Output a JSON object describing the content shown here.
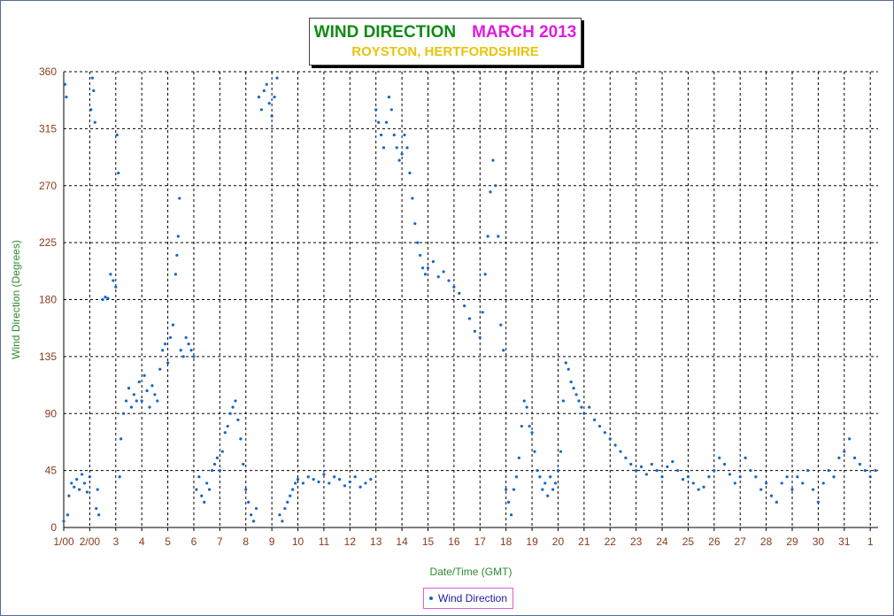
{
  "title": {
    "main": "WIND DIRECTION",
    "period": "MARCH 2013",
    "location": "ROYSTON, HERTFORDSHIRE"
  },
  "legend": {
    "label": "Wind Direction"
  },
  "colors": {
    "title_main": "#0f8a16",
    "title_period": "#e01ce0",
    "title_location": "#e8c40a",
    "axis_text": "#8b3a1a",
    "axis_title": "#2e8b2e",
    "data": "#1565c9"
  },
  "chart_data": {
    "type": "scatter",
    "title": "WIND DIRECTION MARCH 2013",
    "subtitle": "ROYSTON, HERTFORDSHIRE",
    "xlabel": "Date/Time (GMT)",
    "ylabel": "Wind Direction (Degrees)",
    "xlim": [
      1,
      32.3
    ],
    "ylim": [
      0,
      360
    ],
    "yticks": [
      0,
      45,
      90,
      135,
      180,
      225,
      270,
      315,
      360
    ],
    "xticks": [
      {
        "x": 1,
        "label": "1/00"
      },
      {
        "x": 2,
        "label": "2/00"
      },
      {
        "x": 3,
        "label": "3"
      },
      {
        "x": 4,
        "label": "4"
      },
      {
        "x": 5,
        "label": "5"
      },
      {
        "x": 6,
        "label": "6"
      },
      {
        "x": 7,
        "label": "7"
      },
      {
        "x": 8,
        "label": "8"
      },
      {
        "x": 9,
        "label": "9"
      },
      {
        "x": 10,
        "label": "10"
      },
      {
        "x": 11,
        "label": "11"
      },
      {
        "x": 12,
        "label": "12"
      },
      {
        "x": 13,
        "label": "13"
      },
      {
        "x": 14,
        "label": "14"
      },
      {
        "x": 15,
        "label": "15"
      },
      {
        "x": 16,
        "label": "16"
      },
      {
        "x": 17,
        "label": "17"
      },
      {
        "x": 18,
        "label": "18"
      },
      {
        "x": 19,
        "label": "19"
      },
      {
        "x": 20,
        "label": "20"
      },
      {
        "x": 21,
        "label": "21"
      },
      {
        "x": 22,
        "label": "22"
      },
      {
        "x": 23,
        "label": "23"
      },
      {
        "x": 24,
        "label": "24"
      },
      {
        "x": 25,
        "label": "25"
      },
      {
        "x": 26,
        "label": "26"
      },
      {
        "x": 27,
        "label": "27"
      },
      {
        "x": 28,
        "label": "28"
      },
      {
        "x": 29,
        "label": "29"
      },
      {
        "x": 30,
        "label": "30"
      },
      {
        "x": 31,
        "label": "31"
      },
      {
        "x": 32,
        "label": "1"
      }
    ],
    "grid": true,
    "legend_position": "bottom-center",
    "series": [
      {
        "name": "Wind Direction",
        "points": [
          [
            1.0,
            5
          ],
          [
            1.05,
            350
          ],
          [
            1.1,
            340
          ],
          [
            1.15,
            10
          ],
          [
            1.2,
            25
          ],
          [
            1.3,
            35
          ],
          [
            1.4,
            32
          ],
          [
            1.5,
            38
          ],
          [
            1.6,
            30
          ],
          [
            1.7,
            42
          ],
          [
            1.8,
            35
          ],
          [
            1.9,
            28
          ],
          [
            2.0,
            40
          ],
          [
            2.05,
            330
          ],
          [
            2.1,
            355
          ],
          [
            2.15,
            345
          ],
          [
            2.2,
            320
          ],
          [
            2.25,
            15
          ],
          [
            2.3,
            30
          ],
          [
            2.35,
            10
          ],
          [
            2.5,
            180
          ],
          [
            2.6,
            182
          ],
          [
            2.7,
            181
          ],
          [
            2.8,
            200
          ],
          [
            2.9,
            195
          ],
          [
            3.0,
            190
          ],
          [
            3.05,
            310
          ],
          [
            3.1,
            280
          ],
          [
            3.15,
            40
          ],
          [
            3.2,
            70
          ],
          [
            3.3,
            90
          ],
          [
            3.4,
            100
          ],
          [
            3.5,
            110
          ],
          [
            3.6,
            95
          ],
          [
            3.7,
            105
          ],
          [
            3.8,
            100
          ],
          [
            3.9,
            115
          ],
          [
            4.0,
            100
          ],
          [
            4.1,
            120
          ],
          [
            4.2,
            108
          ],
          [
            4.3,
            95
          ],
          [
            4.4,
            112
          ],
          [
            4.5,
            105
          ],
          [
            4.6,
            100
          ],
          [
            4.7,
            125
          ],
          [
            4.8,
            140
          ],
          [
            4.9,
            145
          ],
          [
            5.0,
            130
          ],
          [
            5.1,
            150
          ],
          [
            5.2,
            160
          ],
          [
            5.3,
            200
          ],
          [
            5.35,
            215
          ],
          [
            5.4,
            230
          ],
          [
            5.45,
            260
          ],
          [
            5.5,
            140
          ],
          [
            5.6,
            135
          ],
          [
            5.7,
            150
          ],
          [
            5.8,
            145
          ],
          [
            5.9,
            140
          ],
          [
            6.0,
            135
          ],
          [
            6.1,
            30
          ],
          [
            6.2,
            40
          ],
          [
            6.3,
            25
          ],
          [
            6.4,
            20
          ],
          [
            6.5,
            35
          ],
          [
            6.6,
            30
          ],
          [
            6.7,
            45
          ],
          [
            6.8,
            50
          ],
          [
            6.9,
            55
          ],
          [
            7.0,
            45
          ],
          [
            7.1,
            60
          ],
          [
            7.2,
            75
          ],
          [
            7.3,
            80
          ],
          [
            7.4,
            90
          ],
          [
            7.5,
            95
          ],
          [
            7.6,
            100
          ],
          [
            7.7,
            85
          ],
          [
            7.8,
            70
          ],
          [
            7.9,
            50
          ],
          [
            8.0,
            30
          ],
          [
            8.1,
            20
          ],
          [
            8.2,
            10
          ],
          [
            8.3,
            5
          ],
          [
            8.4,
            15
          ],
          [
            8.5,
            340
          ],
          [
            8.6,
            330
          ],
          [
            8.7,
            345
          ],
          [
            8.8,
            350
          ],
          [
            8.9,
            335
          ],
          [
            9.0,
            325
          ],
          [
            9.1,
            340
          ],
          [
            9.2,
            355
          ],
          [
            9.3,
            10
          ],
          [
            9.4,
            5
          ],
          [
            9.5,
            15
          ],
          [
            9.6,
            20
          ],
          [
            9.7,
            25
          ],
          [
            9.8,
            30
          ],
          [
            9.9,
            35
          ],
          [
            10.0,
            38
          ],
          [
            10.2,
            35
          ],
          [
            10.4,
            40
          ],
          [
            10.6,
            38
          ],
          [
            10.8,
            36
          ],
          [
            11.0,
            42
          ],
          [
            11.2,
            35
          ],
          [
            11.4,
            40
          ],
          [
            11.6,
            38
          ],
          [
            11.8,
            33
          ],
          [
            12.0,
            36
          ],
          [
            12.2,
            40
          ],
          [
            12.4,
            32
          ],
          [
            12.6,
            35
          ],
          [
            12.8,
            38
          ],
          [
            13.0,
            330
          ],
          [
            13.1,
            320
          ],
          [
            13.2,
            310
          ],
          [
            13.3,
            300
          ],
          [
            13.4,
            320
          ],
          [
            13.5,
            340
          ],
          [
            13.6,
            330
          ],
          [
            13.7,
            310
          ],
          [
            13.8,
            300
          ],
          [
            13.9,
            290
          ],
          [
            14.0,
            295
          ],
          [
            14.1,
            310
          ],
          [
            14.2,
            300
          ],
          [
            14.3,
            280
          ],
          [
            14.4,
            260
          ],
          [
            14.5,
            240
          ],
          [
            14.6,
            225
          ],
          [
            14.7,
            215
          ],
          [
            14.8,
            205
          ],
          [
            14.9,
            200
          ],
          [
            15.0,
            205
          ],
          [
            15.2,
            210
          ],
          [
            15.4,
            198
          ],
          [
            15.6,
            202
          ],
          [
            15.8,
            195
          ],
          [
            16.0,
            190
          ],
          [
            16.2,
            185
          ],
          [
            16.4,
            175
          ],
          [
            16.6,
            165
          ],
          [
            16.8,
            155
          ],
          [
            17.0,
            150
          ],
          [
            17.1,
            170
          ],
          [
            17.2,
            200
          ],
          [
            17.3,
            230
          ],
          [
            17.4,
            265
          ],
          [
            17.5,
            290
          ],
          [
            17.6,
            270
          ],
          [
            17.7,
            230
          ],
          [
            17.8,
            160
          ],
          [
            17.9,
            140
          ],
          [
            18.0,
            30
          ],
          [
            18.1,
            20
          ],
          [
            18.2,
            10
          ],
          [
            18.3,
            30
          ],
          [
            18.4,
            40
          ],
          [
            18.5,
            55
          ],
          [
            18.6,
            80
          ],
          [
            18.7,
            100
          ],
          [
            18.8,
            95
          ],
          [
            18.9,
            80
          ],
          [
            19.0,
            75
          ],
          [
            19.1,
            60
          ],
          [
            19.2,
            45
          ],
          [
            19.3,
            40
          ],
          [
            19.4,
            30
          ],
          [
            19.5,
            35
          ],
          [
            19.6,
            25
          ],
          [
            19.7,
            40
          ],
          [
            19.8,
            30
          ],
          [
            19.9,
            35
          ],
          [
            20.0,
            45
          ],
          [
            20.1,
            60
          ],
          [
            20.2,
            100
          ],
          [
            20.3,
            130
          ],
          [
            20.4,
            125
          ],
          [
            20.5,
            115
          ],
          [
            20.6,
            110
          ],
          [
            20.7,
            105
          ],
          [
            20.8,
            100
          ],
          [
            20.9,
            95
          ],
          [
            21.0,
            90
          ],
          [
            21.2,
            95
          ],
          [
            21.4,
            85
          ],
          [
            21.6,
            80
          ],
          [
            21.8,
            75
          ],
          [
            22.0,
            70
          ],
          [
            22.2,
            65
          ],
          [
            22.4,
            60
          ],
          [
            22.6,
            55
          ],
          [
            22.8,
            50
          ],
          [
            23.0,
            45
          ],
          [
            23.2,
            48
          ],
          [
            23.4,
            42
          ],
          [
            23.6,
            50
          ],
          [
            23.8,
            45
          ],
          [
            24.0,
            40
          ],
          [
            24.2,
            48
          ],
          [
            24.4,
            52
          ],
          [
            24.6,
            45
          ],
          [
            24.8,
            38
          ],
          [
            25.0,
            40
          ],
          [
            25.2,
            35
          ],
          [
            25.4,
            30
          ],
          [
            25.6,
            32
          ],
          [
            25.8,
            40
          ],
          [
            26.0,
            45
          ],
          [
            26.2,
            55
          ],
          [
            26.4,
            50
          ],
          [
            26.6,
            42
          ],
          [
            26.8,
            35
          ],
          [
            27.0,
            40
          ],
          [
            27.2,
            55
          ],
          [
            27.4,
            45
          ],
          [
            27.6,
            40
          ],
          [
            27.8,
            30
          ],
          [
            28.0,
            35
          ],
          [
            28.2,
            25
          ],
          [
            28.4,
            20
          ],
          [
            28.6,
            35
          ],
          [
            28.8,
            40
          ],
          [
            29.0,
            30
          ],
          [
            29.2,
            40
          ],
          [
            29.4,
            35
          ],
          [
            29.6,
            45
          ],
          [
            29.8,
            30
          ],
          [
            30.0,
            20
          ],
          [
            30.2,
            35
          ],
          [
            30.4,
            45
          ],
          [
            30.6,
            40
          ],
          [
            30.8,
            55
          ],
          [
            31.0,
            60
          ],
          [
            31.2,
            70
          ],
          [
            31.4,
            55
          ],
          [
            31.6,
            50
          ],
          [
            31.8,
            45
          ],
          [
            32.0,
            40
          ],
          [
            32.2,
            45
          ]
        ]
      }
    ]
  }
}
